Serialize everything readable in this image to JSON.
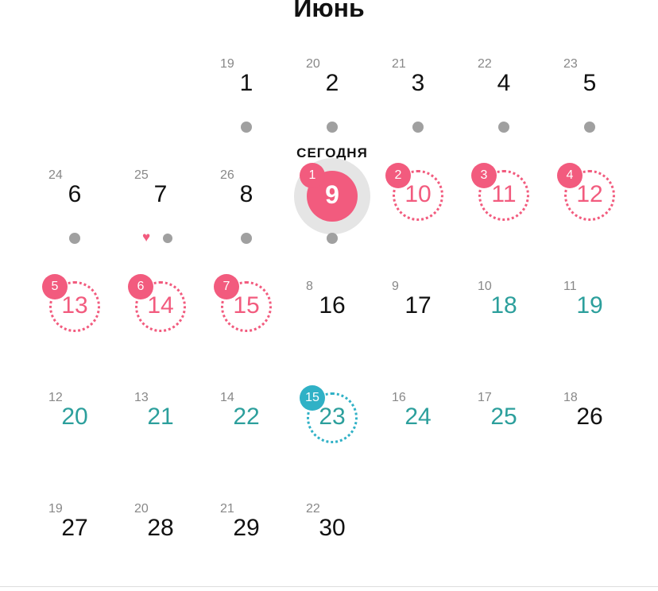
{
  "month_title": "Июнь",
  "today_label": "СЕГОДНЯ",
  "colors": {
    "period": "#f25b7e",
    "fertile": "#2c9f9c",
    "fertile_badge": "#30b1c6",
    "dot": "#a0a0a0",
    "today_halo": "#e5e5e5"
  },
  "weeks": [
    [
      null,
      null,
      {
        "cycle_day": "19",
        "day": "1",
        "type": "normal",
        "dot": true
      },
      {
        "cycle_day": "20",
        "day": "2",
        "type": "normal",
        "dot": true
      },
      {
        "cycle_day": "21",
        "day": "3",
        "type": "normal",
        "dot": true
      },
      {
        "cycle_day": "22",
        "day": "4",
        "type": "normal",
        "dot": true
      },
      {
        "cycle_day": "23",
        "day": "5",
        "type": "normal",
        "dot": true
      }
    ],
    [
      {
        "cycle_day": "24",
        "day": "6",
        "type": "normal",
        "dot": true
      },
      {
        "cycle_day": "25",
        "day": "7",
        "type": "normal",
        "dot": true,
        "heart": true
      },
      {
        "cycle_day": "26",
        "day": "8",
        "type": "normal",
        "dot": true
      },
      {
        "badge": "1",
        "day": "9",
        "type": "today",
        "dot": true
      },
      {
        "badge": "2",
        "day": "10",
        "type": "period-predicted"
      },
      {
        "badge": "3",
        "day": "11",
        "type": "period-predicted"
      },
      {
        "badge": "4",
        "day": "12",
        "type": "period-predicted"
      }
    ],
    [
      {
        "badge": "5",
        "day": "13",
        "type": "period-predicted"
      },
      {
        "badge": "6",
        "day": "14",
        "type": "period-predicted"
      },
      {
        "badge": "7",
        "day": "15",
        "type": "period-predicted"
      },
      {
        "cycle_day": "8",
        "day": "16",
        "type": "normal"
      },
      {
        "cycle_day": "9",
        "day": "17",
        "type": "normal"
      },
      {
        "cycle_day": "10",
        "day": "18",
        "type": "fertile"
      },
      {
        "cycle_day": "11",
        "day": "19",
        "type": "fertile"
      }
    ],
    [
      {
        "cycle_day": "12",
        "day": "20",
        "type": "fertile"
      },
      {
        "cycle_day": "13",
        "day": "21",
        "type": "fertile"
      },
      {
        "cycle_day": "14",
        "day": "22",
        "type": "fertile"
      },
      {
        "badge": "15",
        "day": "23",
        "type": "ovulation"
      },
      {
        "cycle_day": "16",
        "day": "24",
        "type": "fertile"
      },
      {
        "cycle_day": "17",
        "day": "25",
        "type": "fertile"
      },
      {
        "cycle_day": "18",
        "day": "26",
        "type": "normal"
      }
    ],
    [
      {
        "cycle_day": "19",
        "day": "27",
        "type": "normal"
      },
      {
        "cycle_day": "20",
        "day": "28",
        "type": "normal"
      },
      {
        "cycle_day": "21",
        "day": "29",
        "type": "normal"
      },
      {
        "cycle_day": "22",
        "day": "30",
        "type": "normal"
      },
      null,
      null,
      null
    ]
  ]
}
